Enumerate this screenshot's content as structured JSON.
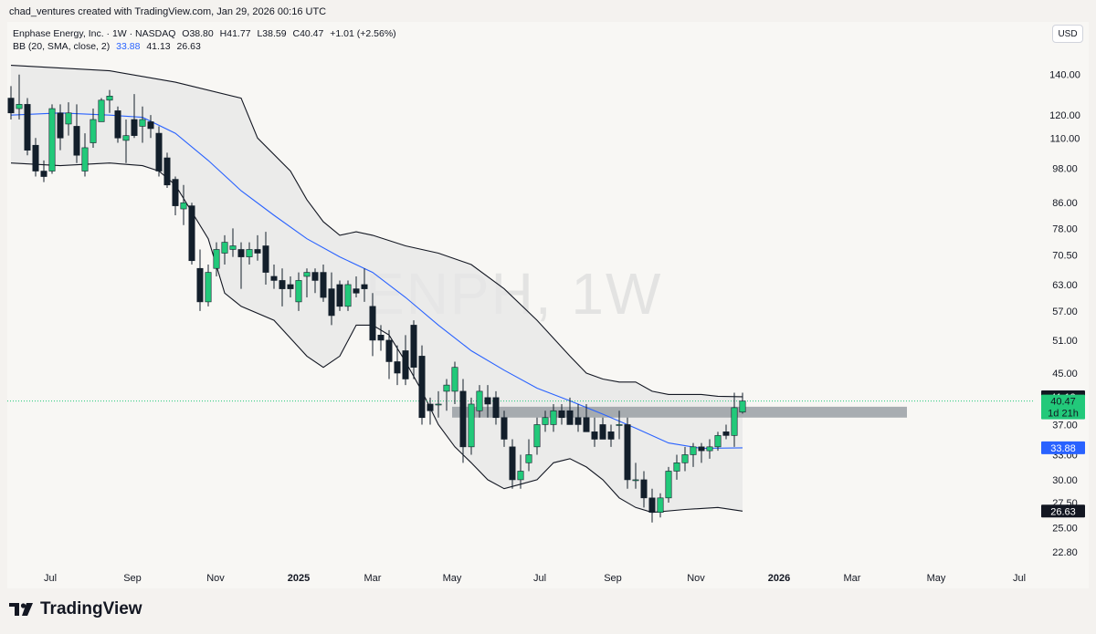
{
  "header": {
    "credit": "chad_ventures created with TradingView.com, Jan 29, 2026 00:16 UTC"
  },
  "legend": {
    "symbol_line": {
      "name": "Enphase Energy, Inc. · 1W · NASDAQ",
      "open": "O38.80",
      "high": "H41.77",
      "low": "L38.59",
      "close": "C40.47",
      "change": "+1.01 (+2.56%)"
    },
    "bb_line": {
      "label": "BB (20, SMA, close, 2)",
      "basis": "33.88",
      "upper": "41.13",
      "lower": "26.63"
    }
  },
  "currency": "USD",
  "watermark": "ENPH, 1W",
  "footer": {
    "brand": "TradingView"
  },
  "colors": {
    "up": "#22c97a",
    "down": "#131f2b",
    "basis": "#2962ff",
    "band": "#131722",
    "band_fill": "#e7e7e7",
    "support_zone": "#9aa0a4",
    "price_line": "#22c97a"
  },
  "chart_data": {
    "type": "candlestick",
    "scale": "log",
    "ylim": [
      21.5,
      152
    ],
    "xlabel": "",
    "ylabel": "",
    "y_ticks": [
      "140.00",
      "120.00",
      "110.00",
      "98.00",
      "86.00",
      "78.00",
      "70.50",
      "63.00",
      "57.00",
      "51.00",
      "45.00",
      "37.00",
      "33.00",
      "30.00",
      "27.50",
      "25.00",
      "22.80"
    ],
    "x_ticks": [
      {
        "label": "Jul",
        "bold": false
      },
      {
        "label": "Sep",
        "bold": false
      },
      {
        "label": "Nov",
        "bold": false
      },
      {
        "label": "2025",
        "bold": true
      },
      {
        "label": "Mar",
        "bold": false
      },
      {
        "label": "May",
        "bold": false
      },
      {
        "label": "Jul",
        "bold": false
      },
      {
        "label": "Sep",
        "bold": false
      },
      {
        "label": "Nov",
        "bold": false
      },
      {
        "label": "2026",
        "bold": true
      },
      {
        "label": "Mar",
        "bold": false
      },
      {
        "label": "May",
        "bold": false
      },
      {
        "label": "Jul",
        "bold": false
      }
    ],
    "candles": [
      {
        "o": 128,
        "h": 134,
        "l": 118,
        "c": 121
      },
      {
        "o": 123,
        "h": 140,
        "l": 118,
        "c": 125
      },
      {
        "o": 125,
        "h": 128,
        "l": 103,
        "c": 105
      },
      {
        "o": 107,
        "h": 110,
        "l": 95,
        "c": 97
      },
      {
        "o": 97,
        "h": 101,
        "l": 93,
        "c": 95
      },
      {
        "o": 97,
        "h": 125,
        "l": 96,
        "c": 123
      },
      {
        "o": 121,
        "h": 125,
        "l": 105,
        "c": 110
      },
      {
        "o": 116,
        "h": 126,
        "l": 111,
        "c": 121
      },
      {
        "o": 115,
        "h": 125,
        "l": 100,
        "c": 103
      },
      {
        "o": 97,
        "h": 112,
        "l": 95,
        "c": 106
      },
      {
        "o": 108,
        "h": 123,
        "l": 106,
        "c": 118
      },
      {
        "o": 117,
        "h": 128,
        "l": 117,
        "c": 127
      },
      {
        "o": 127,
        "h": 132,
        "l": 121,
        "c": 129
      },
      {
        "o": 122,
        "h": 124,
        "l": 108,
        "c": 110
      },
      {
        "o": 109,
        "h": 118,
        "l": 100,
        "c": 111
      },
      {
        "o": 118,
        "h": 130,
        "l": 110,
        "c": 111
      },
      {
        "o": 115,
        "h": 124,
        "l": 108,
        "c": 118
      },
      {
        "o": 117,
        "h": 120,
        "l": 110,
        "c": 114
      },
      {
        "o": 112,
        "h": 115,
        "l": 95,
        "c": 97
      },
      {
        "o": 102,
        "h": 104,
        "l": 91,
        "c": 92
      },
      {
        "o": 94,
        "h": 95,
        "l": 82,
        "c": 85
      },
      {
        "o": 84,
        "h": 92,
        "l": 79,
        "c": 86
      },
      {
        "o": 85,
        "h": 86,
        "l": 68,
        "c": 69
      },
      {
        "o": 67,
        "h": 72,
        "l": 57,
        "c": 59
      },
      {
        "o": 59,
        "h": 68,
        "l": 58,
        "c": 66
      },
      {
        "o": 67,
        "h": 74,
        "l": 65,
        "c": 72
      },
      {
        "o": 71,
        "h": 76,
        "l": 68,
        "c": 74
      },
      {
        "o": 72,
        "h": 78,
        "l": 70,
        "c": 73
      },
      {
        "o": 72,
        "h": 74,
        "l": 62,
        "c": 70
      },
      {
        "o": 70,
        "h": 74,
        "l": 68,
        "c": 72
      },
      {
        "o": 72,
        "h": 76,
        "l": 69,
        "c": 71
      },
      {
        "o": 73,
        "h": 77,
        "l": 63,
        "c": 66
      },
      {
        "o": 65,
        "h": 68,
        "l": 62,
        "c": 64
      },
      {
        "o": 64,
        "h": 67,
        "l": 58,
        "c": 62
      },
      {
        "o": 63,
        "h": 65,
        "l": 60,
        "c": 62
      },
      {
        "o": 59,
        "h": 66,
        "l": 57,
        "c": 64
      },
      {
        "o": 65,
        "h": 67,
        "l": 60,
        "c": 66
      },
      {
        "o": 66,
        "h": 67,
        "l": 61,
        "c": 64
      },
      {
        "o": 66,
        "h": 68,
        "l": 59,
        "c": 60
      },
      {
        "o": 62,
        "h": 66,
        "l": 54,
        "c": 56
      },
      {
        "o": 63,
        "h": 64,
        "l": 57,
        "c": 58
      },
      {
        "o": 58,
        "h": 64,
        "l": 57,
        "c": 63
      },
      {
        "o": 62,
        "h": 65,
        "l": 60,
        "c": 61
      },
      {
        "o": 63,
        "h": 67,
        "l": 59,
        "c": 62
      },
      {
        "o": 58,
        "h": 61,
        "l": 48,
        "c": 51
      },
      {
        "o": 52,
        "h": 54,
        "l": 49,
        "c": 51
      },
      {
        "o": 51,
        "h": 53,
        "l": 44,
        "c": 47
      },
      {
        "o": 47,
        "h": 50,
        "l": 43,
        "c": 45
      },
      {
        "o": 49,
        "h": 52,
        "l": 43,
        "c": 44
      },
      {
        "o": 54,
        "h": 55,
        "l": 44,
        "c": 46
      },
      {
        "o": 48,
        "h": 50,
        "l": 37,
        "c": 38
      },
      {
        "o": 40,
        "h": 41,
        "l": 37,
        "c": 39
      },
      {
        "o": 40,
        "h": 42,
        "l": 38,
        "c": 40
      },
      {
        "o": 42,
        "h": 44,
        "l": 39,
        "c": 43
      },
      {
        "o": 42,
        "h": 47,
        "l": 40,
        "c": 46
      },
      {
        "o": 42,
        "h": 44,
        "l": 32,
        "c": 34
      },
      {
        "o": 34,
        "h": 41,
        "l": 33,
        "c": 40
      },
      {
        "o": 39,
        "h": 43,
        "l": 38,
        "c": 42
      },
      {
        "o": 41,
        "h": 43,
        "l": 38,
        "c": 40
      },
      {
        "o": 41,
        "h": 42,
        "l": 37,
        "c": 38
      },
      {
        "o": 38,
        "h": 39,
        "l": 34,
        "c": 35
      },
      {
        "o": 34,
        "h": 35,
        "l": 29,
        "c": 30
      },
      {
        "o": 30,
        "h": 33,
        "l": 29,
        "c": 31
      },
      {
        "o": 32,
        "h": 35,
        "l": 31,
        "c": 33
      },
      {
        "o": 34,
        "h": 38,
        "l": 33,
        "c": 37
      },
      {
        "o": 37,
        "h": 39,
        "l": 36,
        "c": 38
      },
      {
        "o": 37,
        "h": 40,
        "l": 36,
        "c": 39
      },
      {
        "o": 39,
        "h": 40,
        "l": 37,
        "c": 38
      },
      {
        "o": 39,
        "h": 41,
        "l": 37,
        "c": 37
      },
      {
        "o": 38,
        "h": 40,
        "l": 36,
        "c": 37
      },
      {
        "o": 38,
        "h": 40,
        "l": 36,
        "c": 36
      },
      {
        "o": 36,
        "h": 38,
        "l": 34,
        "c": 35
      },
      {
        "o": 37,
        "h": 38,
        "l": 35,
        "c": 35
      },
      {
        "o": 36,
        "h": 37,
        "l": 34,
        "c": 35
      },
      {
        "o": 37,
        "h": 39,
        "l": 35,
        "c": 37
      },
      {
        "o": 37,
        "h": 38,
        "l": 29,
        "c": 30
      },
      {
        "o": 30,
        "h": 32,
        "l": 29,
        "c": 30
      },
      {
        "o": 30,
        "h": 31,
        "l": 27,
        "c": 28
      },
      {
        "o": 28,
        "h": 29,
        "l": 25.5,
        "c": 26.5
      },
      {
        "o": 26.5,
        "h": 28.5,
        "l": 26,
        "c": 28
      },
      {
        "o": 28,
        "h": 31.5,
        "l": 27.5,
        "c": 31
      },
      {
        "o": 31,
        "h": 33,
        "l": 30,
        "c": 32
      },
      {
        "o": 32,
        "h": 34,
        "l": 31,
        "c": 33
      },
      {
        "o": 33,
        "h": 34.5,
        "l": 31.5,
        "c": 34
      },
      {
        "o": 34,
        "h": 34.5,
        "l": 32,
        "c": 33.5
      },
      {
        "o": 33.5,
        "h": 35,
        "l": 32.5,
        "c": 34
      },
      {
        "o": 34,
        "h": 36,
        "l": 33.5,
        "c": 35.5
      },
      {
        "o": 36,
        "h": 37,
        "l": 35,
        "c": 35.5
      },
      {
        "o": 35.5,
        "h": 41.77,
        "l": 34,
        "c": 39.46
      },
      {
        "o": 38.8,
        "h": 41.77,
        "l": 38.59,
        "c": 40.47
      }
    ],
    "bb_upper": [
      [
        0,
        145
      ],
      [
        12,
        142
      ],
      [
        20,
        136
      ],
      [
        28,
        128
      ],
      [
        30,
        110
      ],
      [
        34,
        97
      ],
      [
        36,
        87
      ],
      [
        38,
        80
      ],
      [
        40,
        76
      ],
      [
        42,
        77
      ],
      [
        44,
        76
      ],
      [
        48,
        73
      ],
      [
        52,
        71
      ],
      [
        56,
        68
      ],
      [
        60,
        62
      ],
      [
        64,
        55
      ],
      [
        68,
        48
      ],
      [
        70,
        45
      ],
      [
        72,
        44
      ],
      [
        74,
        43.5
      ],
      [
        76,
        43.5
      ],
      [
        78,
        42
      ],
      [
        80,
        41.5
      ],
      [
        84,
        41.5
      ],
      [
        86,
        41.2
      ],
      [
        89,
        41.13
      ]
    ],
    "bb_basis": [
      [
        0,
        120
      ],
      [
        6,
        121
      ],
      [
        12,
        120
      ],
      [
        16,
        119
      ],
      [
        20,
        112
      ],
      [
        24,
        101
      ],
      [
        28,
        90
      ],
      [
        32,
        82
      ],
      [
        36,
        75
      ],
      [
        40,
        70
      ],
      [
        44,
        66
      ],
      [
        48,
        60
      ],
      [
        52,
        54
      ],
      [
        56,
        49
      ],
      [
        60,
        45.5
      ],
      [
        64,
        42.5
      ],
      [
        68,
        40.5
      ],
      [
        72,
        38.5
      ],
      [
        76,
        36.5
      ],
      [
        80,
        34.5
      ],
      [
        84,
        33.8
      ],
      [
        89,
        33.88
      ]
    ],
    "bb_lower": [
      [
        0,
        100
      ],
      [
        6,
        99
      ],
      [
        12,
        100
      ],
      [
        16,
        99
      ],
      [
        18,
        97
      ],
      [
        20,
        92
      ],
      [
        24,
        75
      ],
      [
        26,
        61
      ],
      [
        28,
        58
      ],
      [
        32,
        55
      ],
      [
        36,
        48
      ],
      [
        38,
        46
      ],
      [
        40,
        48
      ],
      [
        42,
        54
      ],
      [
        44,
        54
      ],
      [
        46,
        52
      ],
      [
        48,
        47
      ],
      [
        50,
        42
      ],
      [
        52,
        37
      ],
      [
        54,
        34
      ],
      [
        56,
        32
      ],
      [
        58,
        30
      ],
      [
        60,
        29
      ],
      [
        62,
        29.5
      ],
      [
        64,
        30
      ],
      [
        66,
        32
      ],
      [
        68,
        32.5
      ],
      [
        70,
        31.5
      ],
      [
        72,
        30
      ],
      [
        74,
        28
      ],
      [
        76,
        27
      ],
      [
        78,
        26.5
      ],
      [
        82,
        26.8
      ],
      [
        86,
        27
      ],
      [
        89,
        26.63
      ]
    ],
    "support_zone": {
      "from_bar": 54,
      "low": 38.0,
      "high": 39.6
    },
    "last_price": 40.47,
    "price_labels": [
      {
        "text": "41.13",
        "value": 41.13,
        "style": "dark"
      },
      {
        "text": "40.47",
        "value": 40.47,
        "style": "green"
      },
      {
        "text": "1d 21h",
        "value": 40.47,
        "style": "green-sub"
      },
      {
        "text": "33.88",
        "value": 33.88,
        "style": "blue"
      },
      {
        "text": "26.63",
        "value": 26.63,
        "style": "dark"
      }
    ]
  }
}
